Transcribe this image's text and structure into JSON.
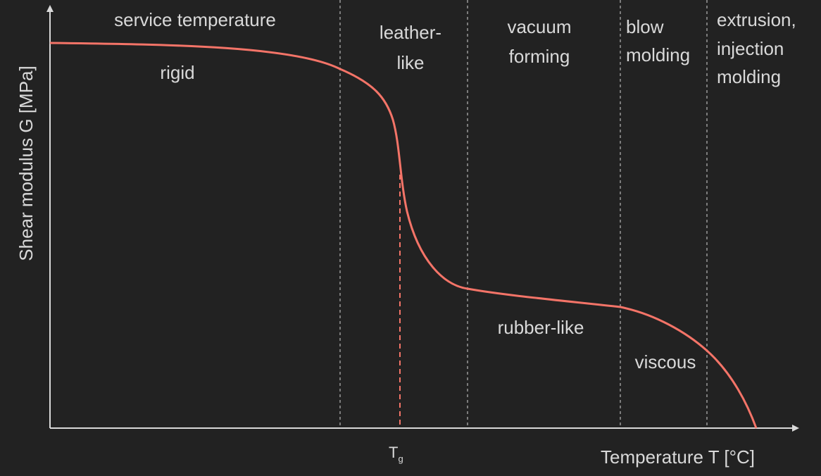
{
  "colors": {
    "background": "#222222",
    "axis": "#d9d9d9",
    "curve": "#f47468",
    "divider": "#9a9a9a",
    "text": "#d9d9d9"
  },
  "axes": {
    "y_label": "Shear modulus G [MPa]",
    "x_label": "Temperature T [°C]",
    "tg_label": "T",
    "tg_subscript": "g"
  },
  "regions": {
    "service": "service temperature",
    "leather_line1": "leather-",
    "leather_line2": "like",
    "vacuum_line1": "vacuum",
    "vacuum_line2": "forming",
    "blow_line1": "blow",
    "blow_line2": "molding",
    "extrusion_line1": "extrusion,",
    "extrusion_line2": "injection",
    "extrusion_line3": "molding"
  },
  "states": {
    "rigid": "rigid",
    "rubber": "rubber-like",
    "viscous": "viscous"
  }
}
